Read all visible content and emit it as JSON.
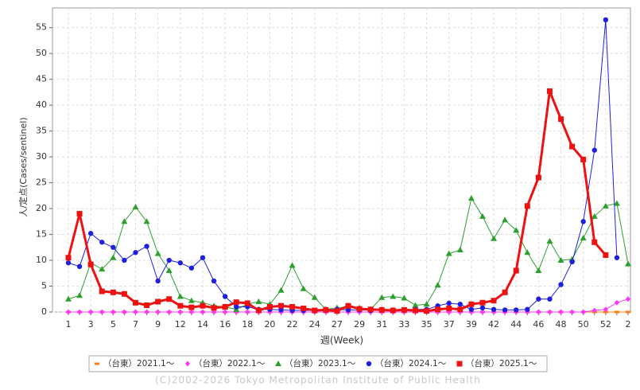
{
  "chart_data": {
    "type": "line",
    "y_label": "人/定点(Cases/sentinel)",
    "x_label": "週(Week)",
    "footer": "(C)2002-2026 Tokyo Metropolitan Institute of Public Health",
    "categories": [
      "1",
      null,
      "3",
      null,
      "5",
      null,
      "7",
      null,
      "9",
      null,
      "12",
      null,
      "14",
      null,
      "16",
      null,
      "18",
      null,
      "20",
      null,
      "22",
      null,
      "24",
      null,
      "27",
      null,
      "29",
      null,
      "31",
      null,
      "33",
      null,
      "35",
      null,
      "37",
      null,
      "39",
      null,
      "42",
      null,
      "44",
      null,
      "46",
      null,
      "48",
      null,
      "50",
      null,
      "52",
      null,
      "2"
    ],
    "ylim": [
      0,
      58.8
    ],
    "yticks": [
      0,
      5,
      10,
      15,
      20,
      25,
      30,
      35,
      40,
      45,
      50,
      55
    ],
    "grid": true,
    "series": [
      {
        "name": "（台東）2021.1～",
        "color": "#ff7f0e",
        "marker": "dash",
        "width": 1,
        "values": [
          0,
          0,
          0,
          0,
          0,
          0,
          0,
          0,
          0,
          0,
          0,
          0,
          0,
          0,
          0,
          0,
          0,
          0,
          0,
          0,
          0,
          0,
          0,
          0,
          0,
          0,
          0,
          0,
          0,
          0,
          0,
          0,
          0,
          0,
          0,
          0,
          0,
          0,
          0,
          0,
          0,
          0,
          0,
          0,
          0,
          0,
          0,
          0,
          0,
          0,
          0
        ]
      },
      {
        "name": "（台東）2022.1～",
        "color": "#ff33ff",
        "marker": "diamond",
        "width": 1,
        "values": [
          0,
          0,
          0,
          0,
          0,
          0,
          0,
          0,
          0,
          0,
          0,
          0,
          0,
          0,
          0,
          0,
          0,
          0,
          0,
          0,
          0,
          0,
          0,
          0,
          0,
          0,
          0,
          0,
          0,
          0,
          0,
          0,
          0,
          0,
          0,
          0,
          0,
          0,
          0,
          0,
          0,
          0,
          0,
          0,
          0,
          0,
          0,
          0.3,
          0.5,
          1.8,
          2.5
        ]
      },
      {
        "name": "（台東）2023.1～",
        "color": "#2ca02c",
        "marker": "triangle",
        "width": 1,
        "values": [
          2.5,
          3.2,
          9.5,
          8.3,
          10.5,
          17.5,
          20.3,
          17.5,
          11.3,
          8,
          3,
          2.2,
          1.8,
          1.2,
          1,
          0.5,
          1.5,
          2,
          1.5,
          4.2,
          9,
          4.5,
          2.8,
          0.5,
          0.8,
          1,
          0.8,
          0.5,
          2.8,
          3,
          2.7,
          1.3,
          1.5,
          5.2,
          11.3,
          12,
          22,
          18.5,
          14.2,
          17.8,
          15.8,
          11.5,
          8,
          13.7,
          10,
          10.2,
          14.3,
          18.5,
          20.5,
          21,
          9.3
        ]
      },
      {
        "name": "（台東）2024.1～",
        "color": "#1f1fe0",
        "marker": "circle",
        "width": 1,
        "values": [
          9.5,
          8.8,
          15.2,
          13.5,
          12.5,
          10,
          11.5,
          12.7,
          6,
          10,
          9.5,
          8.5,
          10.5,
          6,
          3,
          1,
          1,
          0.5,
          0.5,
          0.4,
          0.3,
          0.3,
          0.3,
          0.5,
          0.5,
          0.4,
          0.4,
          0.3,
          0.5,
          0.4,
          0.4,
          0.5,
          0.5,
          1.2,
          1.7,
          1.5,
          0.5,
          0.8,
          0.5,
          0.4,
          0.4,
          0.5,
          2.5,
          2.5,
          5.3,
          9.7,
          17.5,
          31.3,
          56.5,
          10.5,
          null
        ]
      },
      {
        "name": "（台東）2025.1～",
        "color": "#ee1111",
        "marker": "square",
        "width": 3,
        "values": [
          10.5,
          19,
          9.2,
          4,
          3.8,
          3.5,
          1.8,
          1.3,
          2,
          2.5,
          1.2,
          0.9,
          1.2,
          0.8,
          1,
          1.9,
          1.7,
          0.3,
          1,
          1.2,
          1,
          0.7,
          0.3,
          0.4,
          0.2,
          1.2,
          0.6,
          0.5,
          0.4,
          0.3,
          0.4,
          0.3,
          0.2,
          0.5,
          0.7,
          0.5,
          1.5,
          1.8,
          2.2,
          3.8,
          8,
          20.5,
          26,
          42.7,
          37.3,
          32,
          29.5,
          13.5,
          11,
          null,
          null
        ]
      }
    ]
  }
}
